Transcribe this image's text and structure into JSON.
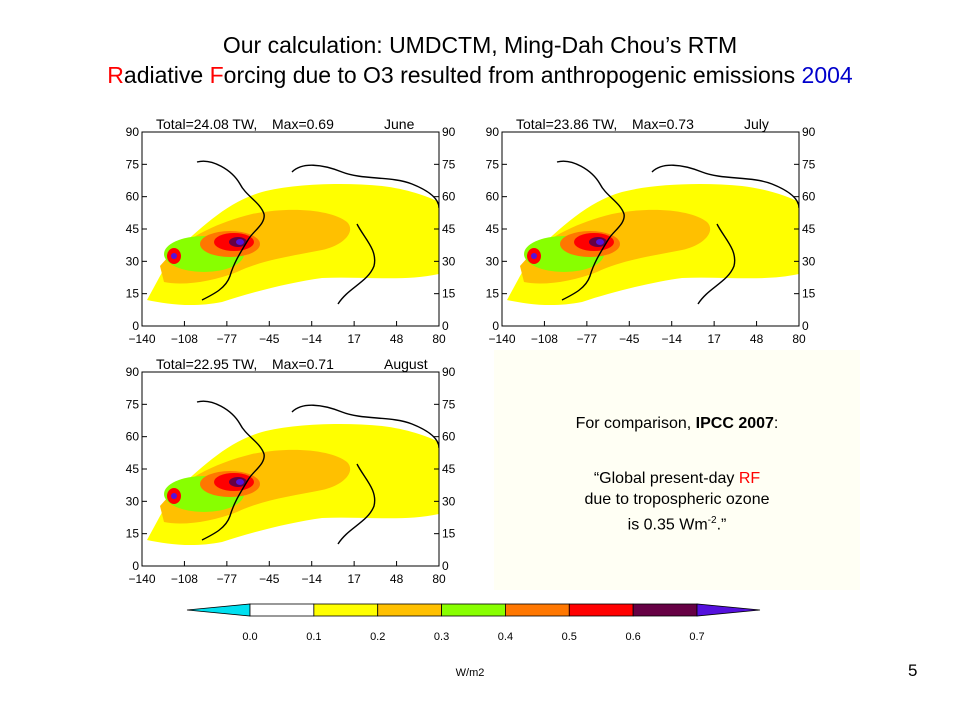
{
  "title": {
    "line1": "Our calculation: UMDCTM, Ming-Dah Chou’s RTM",
    "line2": {
      "r1": "R",
      "p1": "adiative ",
      "r2": "F",
      "p2": "orcing due to O3 resulted from anthropogenic emissions ",
      "year": "2004"
    }
  },
  "colors": {
    "red": "#ff0000",
    "blue": "#0000cc",
    "levels": [
      "#00e0f0",
      "#ffffff",
      "#ffff00",
      "#ffc000",
      "#88ff00",
      "#ff7700",
      "#ff0000",
      "#660044",
      "#5511dd"
    ]
  },
  "chart_data": [
    {
      "type": "heatmap",
      "title": "June",
      "total_label": "Total=24.08 TW,",
      "max_label": "Max=0.69",
      "month": "June",
      "total_tw": 24.08,
      "max_wm2": 0.69,
      "xticks": [
        "−140",
        "−108",
        "−77",
        "−45",
        "−14",
        "17",
        "48",
        "80"
      ],
      "yticks": [
        "0",
        "15",
        "30",
        "45",
        "60",
        "75",
        "90"
      ],
      "xlim": [
        -140,
        80
      ],
      "ylim": [
        0,
        90
      ]
    },
    {
      "type": "heatmap",
      "title": "July",
      "total_label": "Total=23.86 TW,",
      "max_label": "Max=0.73",
      "month": "July",
      "total_tw": 23.86,
      "max_wm2": 0.73,
      "xticks": [
        "−140",
        "−108",
        "−77",
        "−45",
        "−14",
        "17",
        "48",
        "80"
      ],
      "yticks": [
        "0",
        "15",
        "30",
        "45",
        "60",
        "75",
        "90"
      ],
      "xlim": [
        -140,
        80
      ],
      "ylim": [
        0,
        90
      ]
    },
    {
      "type": "heatmap",
      "title": "August",
      "total_label": "Total=22.95 TW,",
      "max_label": "Max=0.71",
      "month": "August",
      "total_tw": 22.95,
      "max_wm2": 0.71,
      "xticks": [
        "−140",
        "−108",
        "−77",
        "−45",
        "−14",
        "17",
        "48",
        "80"
      ],
      "yticks": [
        "0",
        "15",
        "30",
        "45",
        "60",
        "75",
        "90"
      ],
      "xlim": [
        -140,
        80
      ],
      "ylim": [
        0,
        90
      ]
    }
  ],
  "colorbar": {
    "labels": [
      "0.0",
      "0.1",
      "0.2",
      "0.3",
      "0.4",
      "0.5",
      "0.6",
      "0.7"
    ],
    "unit": "W/m2"
  },
  "comparison": {
    "intro_pre": "For comparison, ",
    "intro_bold": "IPCC 2007",
    "intro_post": ":",
    "q_open": "“Global present-day ",
    "q_rf": "RF",
    "q_line2": "due to tropospheric ozone",
    "q_line3_pre": "is 0.35 Wm",
    "q_sup": "-2",
    "q_close": ".”"
  },
  "slide_number": "5"
}
